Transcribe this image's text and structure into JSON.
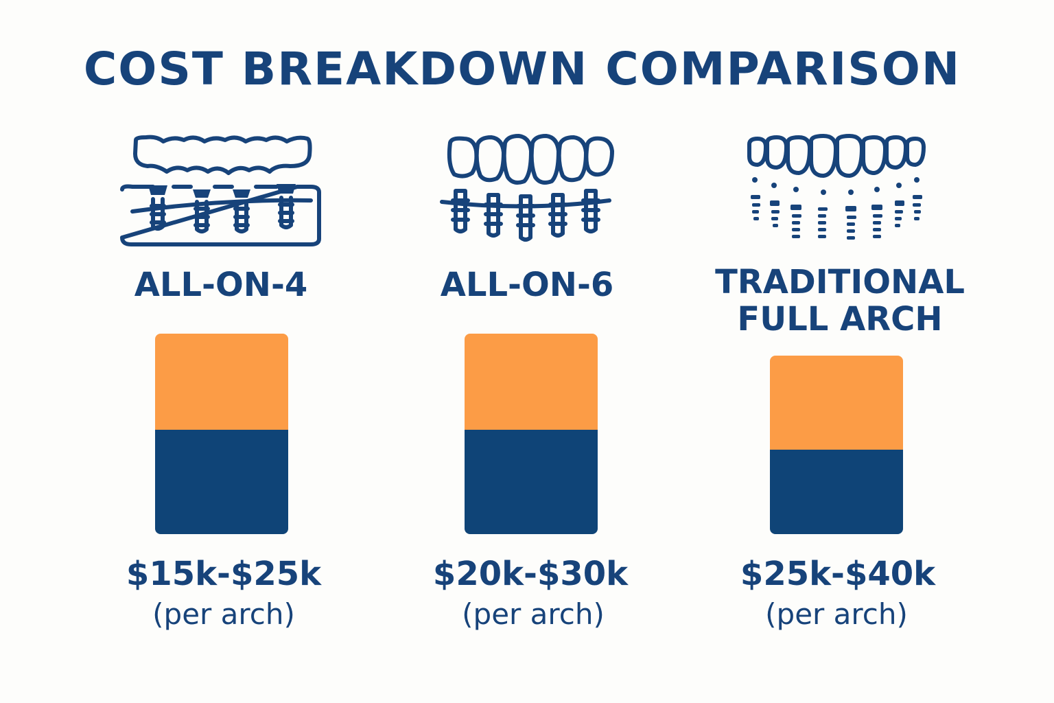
{
  "header": {
    "title": "COST BREAKDOWN COMPARISON"
  },
  "colors": {
    "primary": "#0f4477",
    "accent": "#fc9c46",
    "text": "#17437a",
    "background": "#fdfdfb"
  },
  "chart_data": {
    "type": "bar",
    "stacked": true,
    "title": "COST BREAKDOWN COMPARISON",
    "categories": [
      "ALL-ON-4",
      "ALL-ON-6",
      "TRADITIONAL FULL ARCH"
    ],
    "category_lines": [
      [
        "ALL-ON-4"
      ],
      [
        "ALL-ON-6"
      ],
      [
        "TRADITIONAL",
        "FULL ARCH"
      ]
    ],
    "series": [
      {
        "color": "#0f4477",
        "values": [
          0.52,
          0.52,
          0.42
        ]
      },
      {
        "color": "#fc9c46",
        "values": [
          0.48,
          0.48,
          0.47
        ]
      }
    ],
    "icons": [
      "all-on-4-implant-icon",
      "all-on-6-implant-icon",
      "traditional-full-arch-implant-icon"
    ],
    "price_ranges": [
      "$15k-$25k",
      "$20k-$30k",
      "$25k-$40k"
    ],
    "price_unit": "(per arch)",
    "ylim": [
      0,
      1
    ],
    "grid": false,
    "legend": "none"
  }
}
